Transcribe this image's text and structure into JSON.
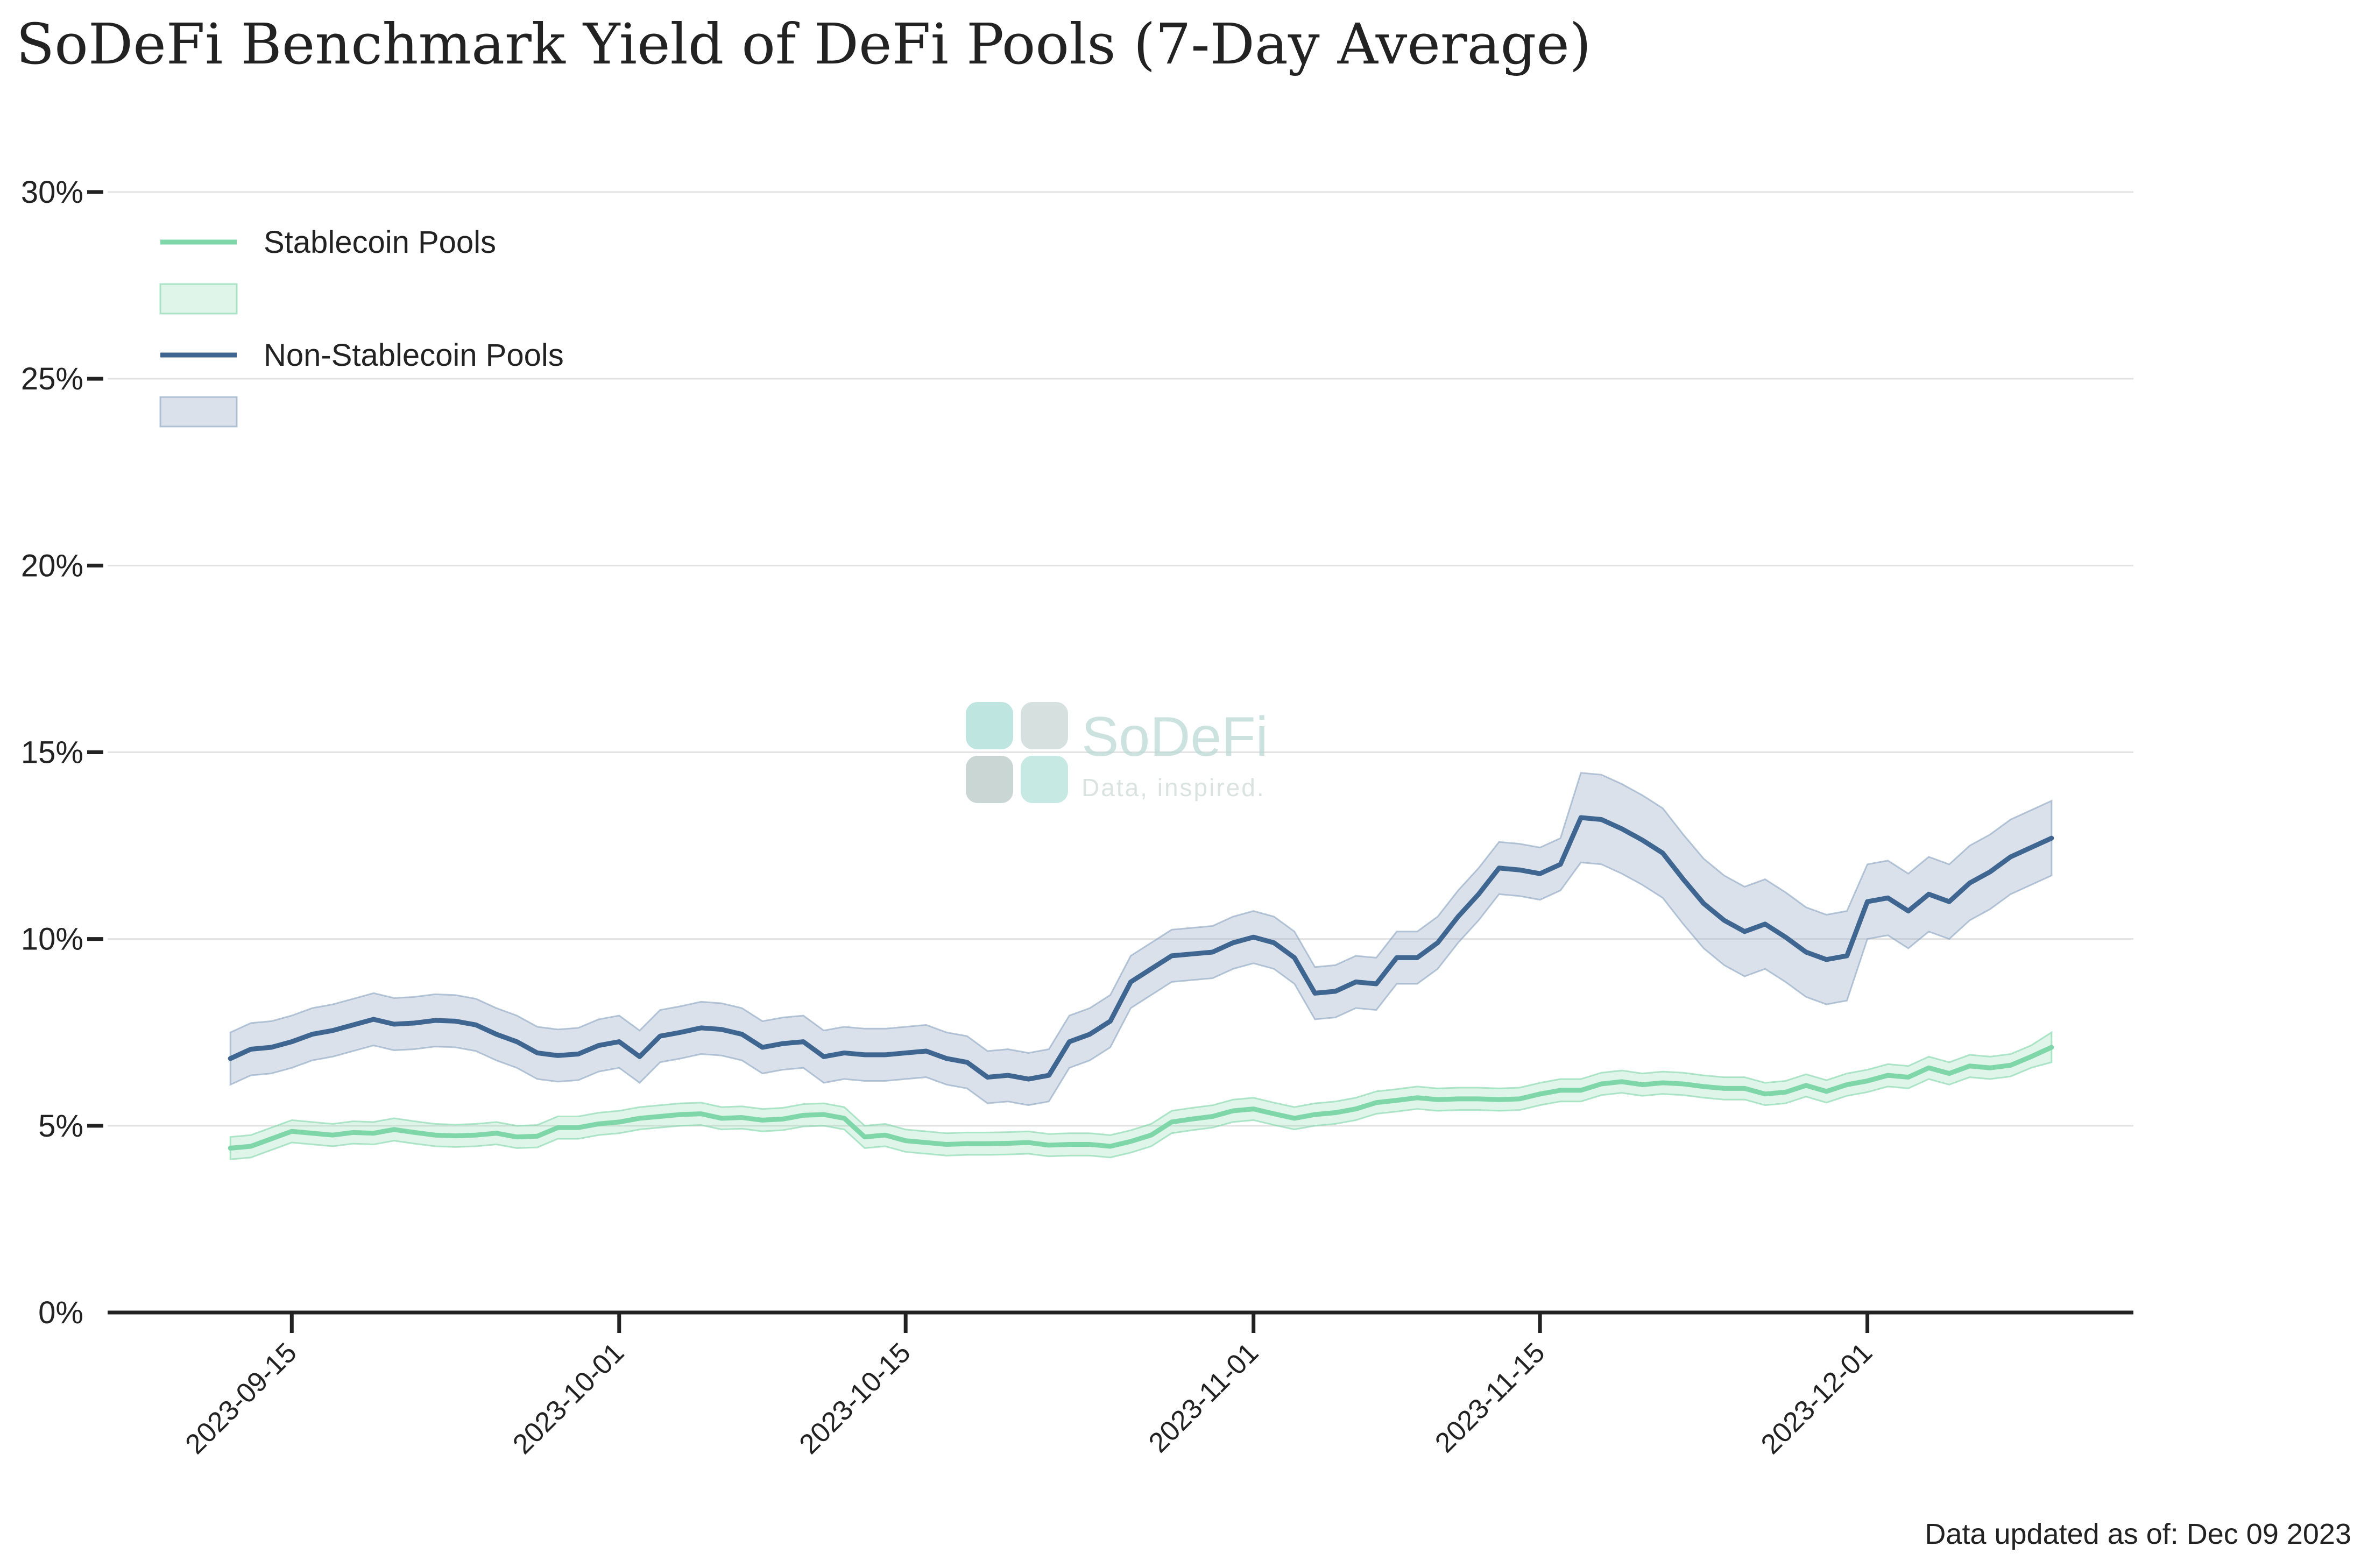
{
  "chart_data": {
    "type": "line",
    "title": "SoDeFi Benchmark Yield of DeFi Pools (7-Day Average)",
    "xlabel": "",
    "ylabel": "",
    "x_start": "2023-09-12",
    "x_end": "2023-12-08",
    "xlim": [
      "2023-09-06",
      "2023-12-14"
    ],
    "ylim": [
      0,
      30
    ],
    "y_ticks": [
      0,
      5,
      10,
      15,
      20,
      25,
      30
    ],
    "y_tick_labels": [
      "0%",
      "5%",
      "10%",
      "15%",
      "20%",
      "25%",
      "30%"
    ],
    "x_ticks": [
      "2023-09-15",
      "2023-10-01",
      "2023-10-15",
      "2023-11-01",
      "2023-11-15",
      "2023-12-01"
    ],
    "x_tick_labels": [
      "2023-09-15",
      "2023-10-01",
      "2023-10-15",
      "2023-11-01",
      "2023-11-15",
      "2023-12-01"
    ],
    "grid": "horizontal",
    "legend_position": "top-left",
    "series": [
      {
        "name": "Stablecoin Pools",
        "color": "#7fd6a8",
        "band_color": "#7fd6a8",
        "values": [
          4.4,
          4.45,
          4.65,
          4.85,
          4.8,
          4.75,
          4.82,
          4.8,
          4.9,
          4.82,
          4.75,
          4.73,
          4.75,
          4.8,
          4.7,
          4.72,
          4.95,
          4.95,
          5.05,
          5.1,
          5.2,
          5.25,
          5.3,
          5.32,
          5.2,
          5.22,
          5.15,
          5.18,
          5.28,
          5.3,
          5.2,
          4.7,
          4.75,
          4.6,
          4.55,
          4.5,
          4.52,
          4.52,
          4.53,
          4.55,
          4.48,
          4.5,
          4.5,
          4.45,
          4.58,
          4.75,
          5.1,
          5.18,
          5.25,
          5.4,
          5.45,
          5.32,
          5.2,
          5.3,
          5.35,
          5.45,
          5.62,
          5.68,
          5.75,
          5.7,
          5.72,
          5.72,
          5.7,
          5.72,
          5.85,
          5.95,
          5.95,
          6.12,
          6.18,
          6.1,
          6.15,
          6.12,
          6.05,
          6.0,
          6.0,
          5.85,
          5.9,
          6.08,
          5.92,
          6.1,
          6.2,
          6.35,
          6.3,
          6.55,
          6.4,
          6.6,
          6.55,
          6.62,
          6.85,
          7.1
        ],
        "lower": [
          4.1,
          4.15,
          4.35,
          4.55,
          4.5,
          4.45,
          4.52,
          4.5,
          4.6,
          4.52,
          4.45,
          4.43,
          4.45,
          4.5,
          4.4,
          4.42,
          4.65,
          4.65,
          4.75,
          4.8,
          4.9,
          4.95,
          5.0,
          5.02,
          4.9,
          4.92,
          4.85,
          4.88,
          4.98,
          5.0,
          4.9,
          4.4,
          4.45,
          4.3,
          4.25,
          4.2,
          4.22,
          4.22,
          4.23,
          4.25,
          4.18,
          4.2,
          4.2,
          4.15,
          4.28,
          4.45,
          4.8,
          4.88,
          4.95,
          5.1,
          5.15,
          5.02,
          4.9,
          5.0,
          5.05,
          5.15,
          5.32,
          5.38,
          5.45,
          5.4,
          5.42,
          5.42,
          5.4,
          5.42,
          5.55,
          5.65,
          5.65,
          5.82,
          5.88,
          5.8,
          5.85,
          5.82,
          5.75,
          5.7,
          5.7,
          5.55,
          5.6,
          5.78,
          5.62,
          5.8,
          5.9,
          6.05,
          6.0,
          6.25,
          6.1,
          6.3,
          6.25,
          6.32,
          6.55,
          6.7
        ],
        "upper": [
          4.7,
          4.75,
          4.95,
          5.15,
          5.1,
          5.05,
          5.12,
          5.1,
          5.2,
          5.12,
          5.05,
          5.03,
          5.05,
          5.1,
          5.0,
          5.02,
          5.25,
          5.25,
          5.35,
          5.4,
          5.5,
          5.55,
          5.6,
          5.62,
          5.5,
          5.52,
          5.45,
          5.48,
          5.58,
          5.6,
          5.5,
          5.0,
          5.05,
          4.9,
          4.85,
          4.8,
          4.82,
          4.82,
          4.83,
          4.85,
          4.78,
          4.8,
          4.8,
          4.75,
          4.88,
          5.05,
          5.4,
          5.48,
          5.55,
          5.7,
          5.75,
          5.62,
          5.5,
          5.6,
          5.65,
          5.75,
          5.92,
          5.98,
          6.05,
          6.0,
          6.02,
          6.02,
          6.0,
          6.02,
          6.15,
          6.25,
          6.25,
          6.42,
          6.48,
          6.4,
          6.45,
          6.42,
          6.35,
          6.3,
          6.3,
          6.15,
          6.2,
          6.38,
          6.22,
          6.4,
          6.5,
          6.65,
          6.6,
          6.85,
          6.7,
          6.9,
          6.85,
          6.92,
          7.15,
          7.5
        ]
      },
      {
        "name": "Non-Stablecoin Pools",
        "color": "#3e6690",
        "band_color": "#8ba3c0",
        "values": [
          6.8,
          7.05,
          7.1,
          7.25,
          7.45,
          7.55,
          7.7,
          7.85,
          7.72,
          7.75,
          7.82,
          7.8,
          7.7,
          7.45,
          7.25,
          6.95,
          6.88,
          6.92,
          7.15,
          7.25,
          6.85,
          7.4,
          7.5,
          7.62,
          7.58,
          7.45,
          7.1,
          7.2,
          7.25,
          6.85,
          6.95,
          6.9,
          6.9,
          6.95,
          7.0,
          6.8,
          6.7,
          6.3,
          6.35,
          6.25,
          6.35,
          7.25,
          7.45,
          7.8,
          8.85,
          9.2,
          9.55,
          9.6,
          9.65,
          9.9,
          10.05,
          9.9,
          9.5,
          8.55,
          8.6,
          8.85,
          8.8,
          9.5,
          9.5,
          9.9,
          10.6,
          11.2,
          11.9,
          11.85,
          11.75,
          12.0,
          13.25,
          13.2,
          12.95,
          12.65,
          12.3,
          11.6,
          10.95,
          10.5,
          10.2,
          10.4,
          10.05,
          9.65,
          9.45,
          9.55,
          11.0,
          11.1,
          10.75,
          11.2,
          11.0,
          11.5,
          11.8,
          12.2,
          12.45,
          12.7
        ],
        "lower": [
          6.1,
          6.35,
          6.4,
          6.55,
          6.75,
          6.85,
          7.0,
          7.15,
          7.02,
          7.05,
          7.12,
          7.1,
          7.0,
          6.75,
          6.55,
          6.25,
          6.18,
          6.22,
          6.45,
          6.55,
          6.15,
          6.7,
          6.8,
          6.92,
          6.88,
          6.75,
          6.4,
          6.5,
          6.55,
          6.15,
          6.25,
          6.2,
          6.2,
          6.25,
          6.3,
          6.1,
          6.0,
          5.6,
          5.65,
          5.55,
          5.65,
          6.55,
          6.75,
          7.1,
          8.15,
          8.5,
          8.85,
          8.9,
          8.95,
          9.2,
          9.35,
          9.2,
          8.8,
          7.85,
          7.9,
          8.15,
          8.1,
          8.8,
          8.8,
          9.2,
          9.9,
          10.5,
          11.2,
          11.15,
          11.05,
          11.3,
          12.05,
          12.0,
          11.75,
          11.45,
          11.1,
          10.4,
          9.75,
          9.3,
          9.0,
          9.2,
          8.85,
          8.45,
          8.25,
          8.35,
          10.0,
          10.1,
          9.75,
          10.2,
          10.0,
          10.5,
          10.8,
          11.2,
          11.45,
          11.7
        ],
        "upper": [
          7.5,
          7.75,
          7.8,
          7.95,
          8.15,
          8.25,
          8.4,
          8.55,
          8.42,
          8.45,
          8.52,
          8.5,
          8.4,
          8.15,
          7.95,
          7.65,
          7.58,
          7.62,
          7.85,
          7.95,
          7.55,
          8.1,
          8.2,
          8.32,
          8.28,
          8.15,
          7.8,
          7.9,
          7.95,
          7.55,
          7.65,
          7.6,
          7.6,
          7.65,
          7.7,
          7.5,
          7.4,
          7.0,
          7.05,
          6.95,
          7.05,
          7.95,
          8.15,
          8.5,
          9.55,
          9.9,
          10.25,
          10.3,
          10.35,
          10.6,
          10.75,
          10.6,
          10.2,
          9.25,
          9.3,
          9.55,
          9.5,
          10.2,
          10.2,
          10.6,
          11.3,
          11.9,
          12.6,
          12.55,
          12.45,
          12.7,
          14.45,
          14.4,
          14.15,
          13.85,
          13.5,
          12.8,
          12.15,
          11.7,
          11.4,
          11.6,
          11.25,
          10.85,
          10.65,
          10.75,
          12.0,
          12.1,
          11.75,
          12.2,
          12.0,
          12.5,
          12.8,
          13.2,
          13.45,
          13.7
        ]
      }
    ],
    "footer": "Data updated as of: Dec 09 2023"
  },
  "watermark": {
    "name": "SoDeFi",
    "tagline": "Data, inspired."
  }
}
